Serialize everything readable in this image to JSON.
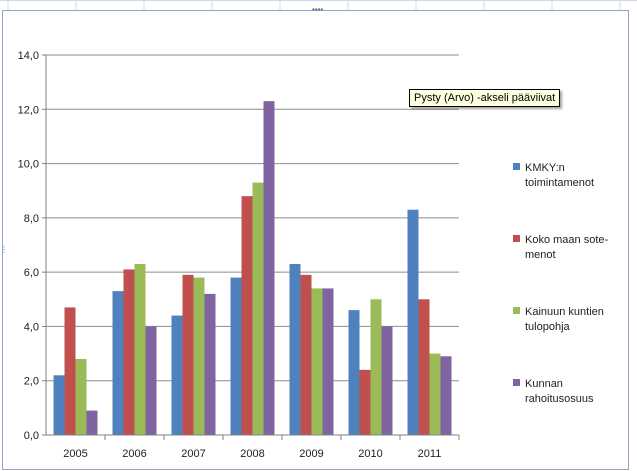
{
  "tooltip": "Pysty (Arvo) -akseli pääviivat",
  "chart_data": {
    "type": "bar",
    "categories": [
      "2005",
      "2006",
      "2007",
      "2008",
      "2009",
      "2010",
      "2011"
    ],
    "series": [
      {
        "name": "KMKY:n toimintamenot",
        "color": "#4f81bd",
        "values": [
          2.2,
          5.3,
          4.4,
          5.8,
          6.3,
          4.6,
          8.3
        ]
      },
      {
        "name": "Koko maan sote-menot",
        "color": "#c0504d",
        "values": [
          4.7,
          6.1,
          5.9,
          8.8,
          5.9,
          2.4,
          5.0
        ]
      },
      {
        "name": "Kainuun kuntien tulopohja",
        "color": "#9bbb59",
        "values": [
          2.8,
          6.3,
          5.8,
          9.3,
          5.4,
          5.0,
          3.0
        ]
      },
      {
        "name": "Kunnan rahoitusosuus",
        "color": "#8064a2",
        "values": [
          0.9,
          4.0,
          5.2,
          12.3,
          5.4,
          4.0,
          2.9
        ]
      }
    ],
    "legend_lines": [
      [
        "KMKY:n",
        "toimintamenot"
      ],
      [
        "Koko maan  sote-",
        "menot"
      ],
      [
        "Kainuun kuntien",
        "tulopohja"
      ],
      [
        "Kunnan",
        "rahoitusosuus"
      ]
    ],
    "y_ticks": [
      "0,0",
      "2,0",
      "4,0",
      "6,0",
      "8,0",
      "10,0",
      "12,0",
      "14,0"
    ],
    "ylim": [
      0,
      14
    ],
    "ystep": 2,
    "grid": true,
    "legend_position": "right",
    "title": "",
    "xlabel": "",
    "ylabel": ""
  }
}
